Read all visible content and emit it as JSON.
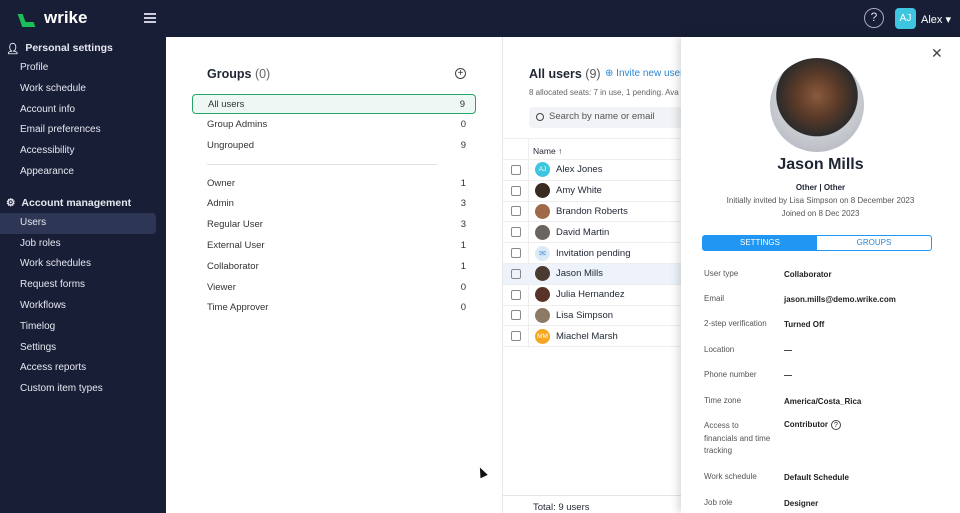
{
  "app": {
    "logo": "wrike",
    "user": "Alex",
    "user_initials": "AJ"
  },
  "sidebar": {
    "personal": "Personal settings",
    "personal_items": [
      "Profile",
      "Work schedule",
      "Account info",
      "Email preferences",
      "Accessibility",
      "Appearance"
    ],
    "account": "Account management",
    "account_items": [
      "Users",
      "Job roles",
      "Work schedules",
      "Request forms",
      "Workflows",
      "Timelog",
      "Settings",
      "Access reports",
      "Custom item types"
    ],
    "active": "Users"
  },
  "groups": {
    "title": "Groups",
    "count": "(0)",
    "items": [
      {
        "label": "All users",
        "count": "9"
      },
      {
        "label": "Group Admins",
        "count": "0"
      },
      {
        "label": "Ungrouped",
        "count": "9"
      }
    ],
    "roles": [
      {
        "label": "Owner",
        "count": "1"
      },
      {
        "label": "Admin",
        "count": "3"
      },
      {
        "label": "Regular User",
        "count": "3"
      },
      {
        "label": "External User",
        "count": "1"
      },
      {
        "label": "Collaborator",
        "count": "1"
      },
      {
        "label": "Viewer",
        "count": "0"
      },
      {
        "label": "Time Approver",
        "count": "0"
      }
    ]
  },
  "users": {
    "title": "All users",
    "count": "(9)",
    "invite": "Invite new user",
    "seats": "8 allocated seats: 7 in use, 1 pending. Ava",
    "search_placeholder": "Search by name or email",
    "col_name": "Name ↑",
    "footer": "Total: 9 users",
    "rows": [
      {
        "name": "Alex Jones",
        "initials": "AJ",
        "color": "#3ec6e0"
      },
      {
        "name": "Amy White",
        "color": "#3a2a22"
      },
      {
        "name": "Brandon Roberts",
        "color": "#a0694a"
      },
      {
        "name": "David Martin",
        "color": "#6b6560"
      },
      {
        "name": "Invitation pending",
        "icon": "envelope-icon",
        "color": "#dce9f7"
      },
      {
        "name": "Jason Mills",
        "color": "#4a3a30"
      },
      {
        "name": "Julia Hernandez",
        "color": "#5a3328"
      },
      {
        "name": "Lisa Simpson",
        "color": "#8c7a66"
      },
      {
        "name": "Miachel Marsh",
        "initials": "MM",
        "color": "#f5a623"
      }
    ],
    "selected": "Jason Mills"
  },
  "panel": {
    "name": "Jason Mills",
    "role": "Other | Other",
    "invited": "Initially invited by Lisa Simpson on 8 December 2023",
    "joined": "Joined on 8 Dec 2023",
    "tab_settings": "SETTINGS",
    "tab_groups": "GROUPS",
    "fields": [
      {
        "label": "User type",
        "value": "Collaborator"
      },
      {
        "label": "Email",
        "value": "jason.mills@demo.wrike.com"
      },
      {
        "label": "2-step verification",
        "value": "Turned Off"
      },
      {
        "label": "Location",
        "value": "—"
      },
      {
        "label": "Phone number",
        "value": "—"
      },
      {
        "label": "Time zone",
        "value": "America/Costa_Rica"
      },
      {
        "label": "Access to financials and time tracking",
        "value": "Contributor"
      },
      {
        "label": "Work schedule",
        "value": "Default Schedule"
      },
      {
        "label": "Job role",
        "value": "Designer"
      }
    ]
  }
}
